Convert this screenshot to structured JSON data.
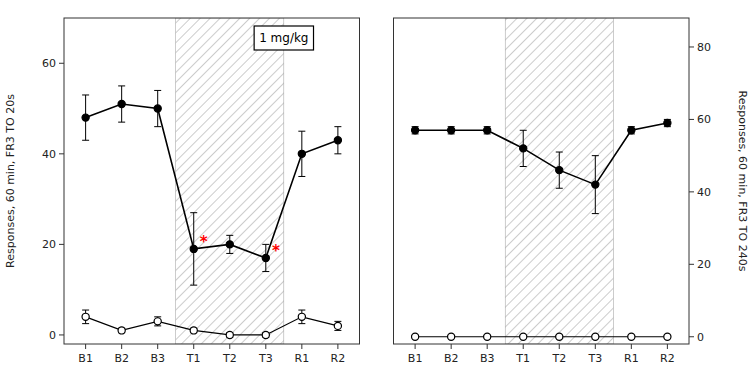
{
  "chart_data": [
    {
      "type": "line",
      "categories": [
        "B1",
        "B2",
        "B3",
        "T1",
        "T2",
        "T3",
        "R1",
        "R2"
      ],
      "series": [
        {
          "color": "#000000",
          "marker": "filled-circle",
          "values": [
            48,
            51,
            50,
            19,
            20,
            17,
            40,
            43
          ],
          "errors": [
            5,
            4,
            4,
            8,
            2,
            3,
            5,
            3
          ]
        },
        {
          "color": "#000000",
          "marker": "open-circle",
          "values": [
            4,
            1,
            3,
            1,
            0,
            0,
            4,
            2
          ],
          "errors": [
            1.5,
            0.5,
            1,
            0.5,
            0.5,
            0.5,
            1.5,
            1
          ]
        }
      ],
      "ylim": [
        -2,
        70
      ],
      "yticks": [
        0,
        20,
        40,
        60
      ],
      "y_label": "Responses, 60 min, FR3 TO 20s",
      "shaded_span": [
        2.5,
        5.5
      ],
      "annotation": "1 mg/kg",
      "annotations": [
        {
          "text": "*",
          "category": "T1",
          "color": "#ff0000"
        },
        {
          "text": "*",
          "category": "T3",
          "color": "#ff0000"
        }
      ],
      "grid": false
    },
    {
      "type": "line",
      "categories": [
        "B1",
        "B2",
        "B3",
        "T1",
        "T2",
        "T3",
        "R1",
        "R2"
      ],
      "series": [
        {
          "color": "#000000",
          "marker": "filled-circle",
          "axis": "y2",
          "values": [
            57,
            57,
            57,
            52,
            46,
            42,
            57,
            59
          ],
          "errors": [
            1,
            1,
            1,
            5,
            5,
            8,
            1,
            1
          ]
        },
        {
          "color": "#000000",
          "marker": "open-circle",
          "axis": "y2",
          "values": [
            0,
            0,
            0,
            0,
            0,
            0,
            0,
            0
          ],
          "errors": [
            0.3,
            0.3,
            0.3,
            0.3,
            0.3,
            0.3,
            0.3,
            0.3
          ]
        }
      ],
      "y2lim": [
        -2,
        88
      ],
      "y2ticks": [
        0,
        20,
        40,
        60,
        80
      ],
      "y2_label": "Responses, 60 min, FR3 TO 240s",
      "shaded_span": [
        2.5,
        5.5
      ],
      "grid": false
    }
  ]
}
